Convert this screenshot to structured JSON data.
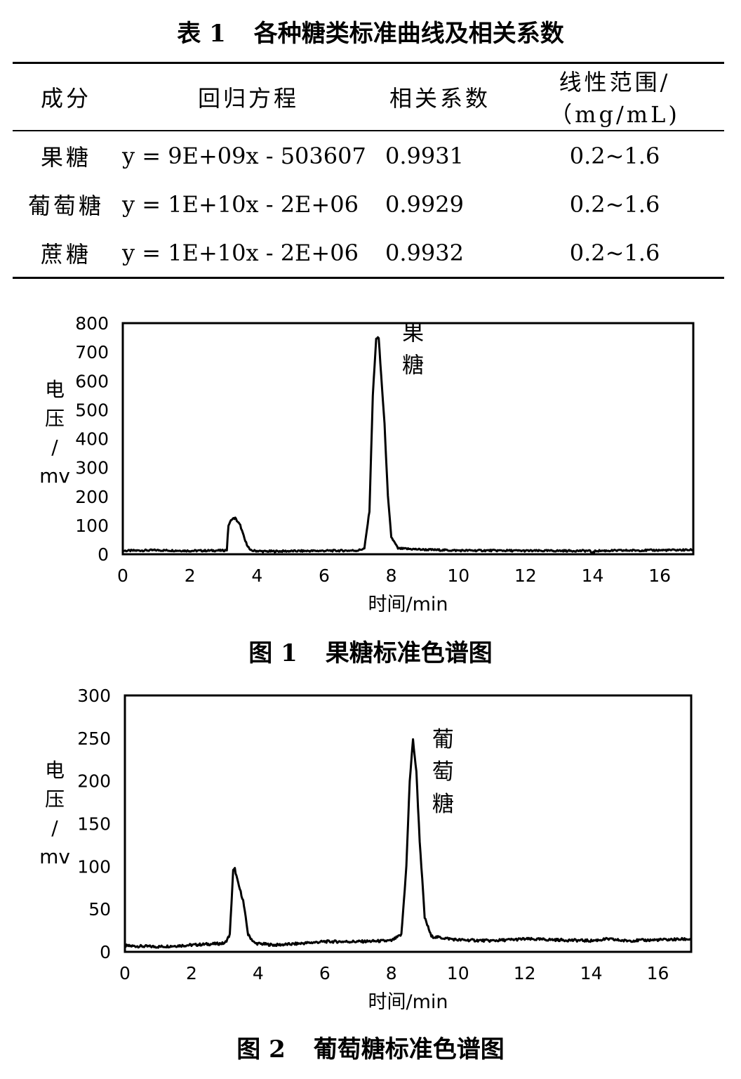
{
  "table": {
    "caption_num": "表 1",
    "caption_text": "各种糖类标准曲线及相关系数",
    "headers": [
      "成分",
      "回归方程",
      "相关系数",
      "线性范围/（mg/mL)"
    ],
    "rows": [
      {
        "name": "果糖",
        "equation": "y = 9E+09x - 503607",
        "r": "0.9931",
        "range": "0.2~1.6"
      },
      {
        "name": "葡萄糖",
        "equation": "y = 1E+10x - 2E+06",
        "r": "0.9929",
        "range": "0.2~1.6"
      },
      {
        "name": "蔗糖",
        "equation": "y = 1E+10x - 2E+06",
        "r": "0.9932",
        "range": "0.2~1.6"
      }
    ]
  },
  "figure1": {
    "caption_num": "图 1",
    "caption_text": "果糖标准色谱图"
  },
  "figure2": {
    "caption_num": "图 2",
    "caption_text": "葡萄糖标准色谱图"
  },
  "chart_data": [
    {
      "type": "line",
      "title": "",
      "xlabel": "时间/min",
      "ylabel": "电压/mv",
      "xlim": [
        0,
        17
      ],
      "ylim": [
        0,
        800
      ],
      "xticks": [
        0,
        2,
        4,
        6,
        8,
        10,
        12,
        14,
        16
      ],
      "yticks": [
        0,
        100,
        200,
        300,
        400,
        500,
        600,
        700,
        800
      ],
      "grid": false,
      "annotations": [
        {
          "text": "果糖",
          "x": 8.65,
          "y": 740
        }
      ],
      "series": [
        {
          "values": [
            [
              0,
              12
            ],
            [
              1,
              14
            ],
            [
              2,
              12
            ],
            [
              3,
              13
            ],
            [
              3.1,
              15
            ],
            [
              3.15,
              100
            ],
            [
              3.25,
              122
            ],
            [
              3.35,
              125
            ],
            [
              3.5,
              100
            ],
            [
              3.65,
              45
            ],
            [
              3.8,
              13
            ],
            [
              4.2,
              10
            ],
            [
              5,
              11
            ],
            [
              6,
              12
            ],
            [
              7,
              13
            ],
            [
              7.2,
              20
            ],
            [
              7.35,
              150
            ],
            [
              7.45,
              550
            ],
            [
              7.55,
              745
            ],
            [
              7.62,
              755
            ],
            [
              7.7,
              620
            ],
            [
              7.8,
              450
            ],
            [
              7.9,
              200
            ],
            [
              8.0,
              60
            ],
            [
              8.2,
              20
            ],
            [
              9,
              16
            ],
            [
              10,
              13
            ],
            [
              11,
              13
            ],
            [
              12,
              12
            ],
            [
              13,
              12
            ],
            [
              13.9,
              12
            ],
            [
              14,
              5
            ],
            [
              14.1,
              12
            ],
            [
              15,
              13
            ],
            [
              16,
              14
            ],
            [
              17,
              15
            ]
          ]
        }
      ]
    },
    {
      "type": "line",
      "title": "",
      "xlabel": "时间/min",
      "ylabel": "电压/mv",
      "xlim": [
        0,
        17
      ],
      "ylim": [
        0,
        300
      ],
      "xticks": [
        0,
        2,
        4,
        6,
        8,
        10,
        12,
        14,
        16
      ],
      "yticks": [
        0,
        50,
        100,
        150,
        200,
        250,
        300
      ],
      "grid": false,
      "annotations": [
        {
          "text": "葡萄糖",
          "x": 9.55,
          "y": 240
        }
      ],
      "series": [
        {
          "values": [
            [
              0,
              7
            ],
            [
              1,
              6
            ],
            [
              2,
              8
            ],
            [
              2.5,
              9
            ],
            [
              3,
              10
            ],
            [
              3.15,
              20
            ],
            [
              3.25,
              95
            ],
            [
              3.3,
              97
            ],
            [
              3.4,
              80
            ],
            [
              3.55,
              60
            ],
            [
              3.7,
              20
            ],
            [
              3.9,
              10
            ],
            [
              4.5,
              8
            ],
            [
              5,
              9
            ],
            [
              6,
              12
            ],
            [
              7,
              12
            ],
            [
              8,
              13
            ],
            [
              8.3,
              20
            ],
            [
              8.45,
              100
            ],
            [
              8.55,
              200
            ],
            [
              8.65,
              248
            ],
            [
              8.75,
              210
            ],
            [
              8.85,
              130
            ],
            [
              9.0,
              40
            ],
            [
              9.2,
              18
            ],
            [
              10,
              14
            ],
            [
              11,
              13
            ],
            [
              12,
              15
            ],
            [
              13,
              14
            ],
            [
              14,
              13
            ],
            [
              14.5,
              15
            ],
            [
              15,
              13
            ],
            [
              16,
              14
            ],
            [
              17,
              15
            ]
          ]
        }
      ]
    }
  ]
}
